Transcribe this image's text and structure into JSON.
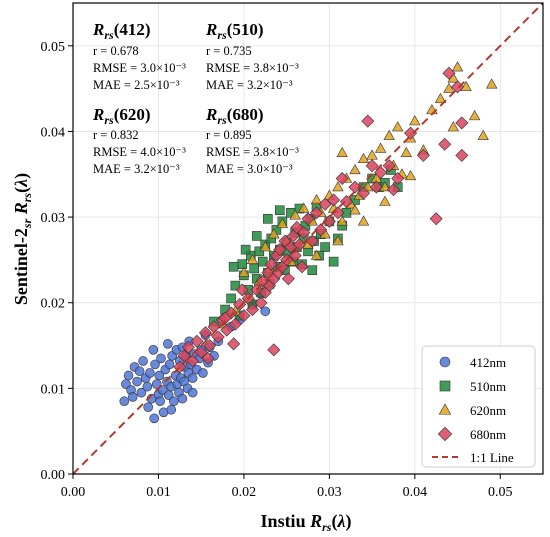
{
  "chart_data": {
    "type": "scatter",
    "title": "",
    "xlabel": "Instiu R_rs(λ)",
    "ylabel": "Sentinel-2_sr R_rs(λ)",
    "xlim": [
      0.0,
      0.055
    ],
    "ylim": [
      0.0,
      0.055
    ],
    "xticks": [
      "0.00",
      "0.01",
      "0.02",
      "0.03",
      "0.04",
      "0.05"
    ],
    "yticks": [
      "0.00",
      "0.01",
      "0.02",
      "0.03",
      "0.04",
      "0.05"
    ],
    "grid": true,
    "legend_position": "bottom-right",
    "reference_line": {
      "name": "1:1 Line",
      "color": "#b03a2e",
      "style": "dashed"
    },
    "stats": [
      {
        "title": "R_rs(412)",
        "r": "r = 0.678",
        "rmse": "RMSE = 3.0×10⁻³",
        "mae": "MAE = 2.5×10⁻³"
      },
      {
        "title": "R_rs(510)",
        "r": "r = 0.735",
        "rmse": "RMSE = 3.8×10⁻³",
        "mae": "MAE = 3.2×10⁻³"
      },
      {
        "title": "R_rs(620)",
        "r": "r = 0.832",
        "rmse": "RMSE = 4.0×10⁻³",
        "mae": "MAE = 3.2×10⁻³"
      },
      {
        "title": "R_rs(680)",
        "r": "r = 0.895",
        "rmse": "RMSE = 3.8×10⁻³",
        "mae": "MAE = 3.0×10⁻³"
      }
    ],
    "series": [
      {
        "name": "412nm",
        "marker": "circle",
        "color": "#4f74d6",
        "points": [
          [
            0.006,
            0.0085
          ],
          [
            0.0062,
            0.0105
          ],
          [
            0.0065,
            0.0115
          ],
          [
            0.0068,
            0.0098
          ],
          [
            0.007,
            0.009
          ],
          [
            0.0072,
            0.0125
          ],
          [
            0.0075,
            0.0108
          ],
          [
            0.0078,
            0.012
          ],
          [
            0.008,
            0.0095
          ],
          [
            0.0082,
            0.0132
          ],
          [
            0.0085,
            0.0112
          ],
          [
            0.0087,
            0.0102
          ],
          [
            0.009,
            0.0118
          ],
          [
            0.0092,
            0.0088
          ],
          [
            0.0094,
            0.0145
          ],
          [
            0.0096,
            0.0128
          ],
          [
            0.0098,
            0.0105
          ],
          [
            0.01,
            0.0093
          ],
          [
            0.0101,
            0.0115
          ],
          [
            0.0102,
            0.0085
          ],
          [
            0.0103,
            0.0135
          ],
          [
            0.0105,
            0.0098
          ],
          [
            0.0106,
            0.0072
          ],
          [
            0.0108,
            0.0122
          ],
          [
            0.011,
            0.0108
          ],
          [
            0.0111,
            0.0152
          ],
          [
            0.0112,
            0.0092
          ],
          [
            0.0113,
            0.0128
          ],
          [
            0.0115,
            0.0102
          ],
          [
            0.0116,
            0.0138
          ],
          [
            0.0118,
            0.0085
          ],
          [
            0.012,
            0.0115
          ],
          [
            0.0121,
            0.0145
          ],
          [
            0.0122,
            0.0105
          ],
          [
            0.0124,
            0.0095
          ],
          [
            0.0125,
            0.0132
          ],
          [
            0.0126,
            0.0112
          ],
          [
            0.0128,
            0.0148
          ],
          [
            0.013,
            0.0108
          ],
          [
            0.0131,
            0.0125
          ],
          [
            0.0132,
            0.0138
          ],
          [
            0.0134,
            0.01
          ],
          [
            0.0135,
            0.0118
          ],
          [
            0.0136,
            0.0155
          ],
          [
            0.0138,
            0.0128
          ],
          [
            0.014,
            0.0112
          ],
          [
            0.0142,
            0.014
          ],
          [
            0.0145,
            0.0122
          ],
          [
            0.0148,
            0.0135
          ],
          [
            0.015,
            0.0145
          ],
          [
            0.0152,
            0.0118
          ],
          [
            0.0155,
            0.0162
          ],
          [
            0.0158,
            0.013
          ],
          [
            0.016,
            0.0148
          ],
          [
            0.0165,
            0.0138
          ],
          [
            0.017,
            0.0155
          ],
          [
            0.0185,
            0.0172
          ],
          [
            0.0195,
            0.018
          ],
          [
            0.021,
            0.0198
          ],
          [
            0.022,
            0.021
          ],
          [
            0.0225,
            0.019
          ],
          [
            0.0088,
            0.0078
          ],
          [
            0.0095,
            0.0065
          ],
          [
            0.0115,
            0.0075
          ],
          [
            0.0128,
            0.0088
          ],
          [
            0.014,
            0.0095
          ]
        ]
      },
      {
        "name": "510nm",
        "marker": "square",
        "color": "#1f8a3c",
        "points": [
          [
            0.0165,
            0.0178
          ],
          [
            0.0178,
            0.0192
          ],
          [
            0.0185,
            0.0205
          ],
          [
            0.019,
            0.022
          ],
          [
            0.0195,
            0.0185
          ],
          [
            0.0198,
            0.0245
          ],
          [
            0.02,
            0.0232
          ],
          [
            0.0205,
            0.0215
          ],
          [
            0.0208,
            0.0255
          ],
          [
            0.021,
            0.0198
          ],
          [
            0.0212,
            0.024
          ],
          [
            0.0215,
            0.0228
          ],
          [
            0.0218,
            0.026
          ],
          [
            0.022,
            0.0212
          ],
          [
            0.0222,
            0.0248
          ],
          [
            0.0225,
            0.0268
          ],
          [
            0.0228,
            0.0235
          ],
          [
            0.023,
            0.0222
          ],
          [
            0.0232,
            0.0275
          ],
          [
            0.0235,
            0.0255
          ],
          [
            0.0238,
            0.0285
          ],
          [
            0.024,
            0.0242
          ],
          [
            0.0242,
            0.0262
          ],
          [
            0.0245,
            0.0295
          ],
          [
            0.0248,
            0.0238
          ],
          [
            0.025,
            0.027
          ],
          [
            0.0252,
            0.0258
          ],
          [
            0.0255,
            0.0305
          ],
          [
            0.0258,
            0.0248
          ],
          [
            0.026,
            0.0282
          ],
          [
            0.0262,
            0.0265
          ],
          [
            0.0265,
            0.031
          ],
          [
            0.0268,
            0.0245
          ],
          [
            0.027,
            0.0275
          ],
          [
            0.0272,
            0.029
          ],
          [
            0.0275,
            0.026
          ],
          [
            0.0278,
            0.0298
          ],
          [
            0.028,
            0.0238
          ],
          [
            0.0282,
            0.0272
          ],
          [
            0.0285,
            0.0312
          ],
          [
            0.0288,
            0.0255
          ],
          [
            0.029,
            0.028
          ],
          [
            0.0295,
            0.0265
          ],
          [
            0.03,
            0.0295
          ],
          [
            0.0305,
            0.0248
          ],
          [
            0.031,
            0.0275
          ],
          [
            0.0315,
            0.029
          ],
          [
            0.032,
            0.0305
          ],
          [
            0.033,
            0.032
          ],
          [
            0.034,
            0.0335
          ],
          [
            0.035,
            0.0345
          ],
          [
            0.0358,
            0.0335
          ],
          [
            0.0365,
            0.034
          ],
          [
            0.0372,
            0.0355
          ],
          [
            0.038,
            0.0335
          ],
          [
            0.0188,
            0.0242
          ],
          [
            0.0202,
            0.0262
          ],
          [
            0.0215,
            0.0278
          ],
          [
            0.0228,
            0.0298
          ],
          [
            0.0242,
            0.0308
          ]
        ]
      },
      {
        "name": "620nm",
        "marker": "triangle",
        "color": "#e0a21c",
        "points": [
          [
            0.0175,
            0.0175
          ],
          [
            0.019,
            0.019
          ],
          [
            0.02,
            0.0235
          ],
          [
            0.0205,
            0.0205
          ],
          [
            0.021,
            0.025
          ],
          [
            0.0218,
            0.0225
          ],
          [
            0.0225,
            0.0265
          ],
          [
            0.023,
            0.024
          ],
          [
            0.0235,
            0.028
          ],
          [
            0.024,
            0.026
          ],
          [
            0.0245,
            0.0292
          ],
          [
            0.025,
            0.0272
          ],
          [
            0.0255,
            0.0248
          ],
          [
            0.026,
            0.0302
          ],
          [
            0.0265,
            0.0285
          ],
          [
            0.027,
            0.031
          ],
          [
            0.0275,
            0.0268
          ],
          [
            0.028,
            0.0295
          ],
          [
            0.0285,
            0.032
          ],
          [
            0.029,
            0.0305
          ],
          [
            0.0295,
            0.028
          ],
          [
            0.03,
            0.0325
          ],
          [
            0.0305,
            0.031
          ],
          [
            0.031,
            0.0335
          ],
          [
            0.0315,
            0.0295
          ],
          [
            0.032,
            0.0345
          ],
          [
            0.0325,
            0.0315
          ],
          [
            0.033,
            0.0355
          ],
          [
            0.0335,
            0.0325
          ],
          [
            0.034,
            0.0368
          ],
          [
            0.0345,
            0.0335
          ],
          [
            0.035,
            0.0372
          ],
          [
            0.0355,
            0.0345
          ],
          [
            0.036,
            0.038
          ],
          [
            0.0365,
            0.0335
          ],
          [
            0.037,
            0.0395
          ],
          [
            0.0375,
            0.036
          ],
          [
            0.038,
            0.0405
          ],
          [
            0.0385,
            0.035
          ],
          [
            0.039,
            0.0375
          ],
          [
            0.0395,
            0.0392
          ],
          [
            0.04,
            0.0412
          ],
          [
            0.041,
            0.0378
          ],
          [
            0.042,
            0.0425
          ],
          [
            0.043,
            0.0438
          ],
          [
            0.044,
            0.045
          ],
          [
            0.0445,
            0.0462
          ],
          [
            0.045,
            0.0475
          ],
          [
            0.046,
            0.0452
          ],
          [
            0.047,
            0.0418
          ],
          [
            0.048,
            0.0395
          ],
          [
            0.049,
            0.0455
          ],
          [
            0.0365,
            0.0318
          ],
          [
            0.034,
            0.0295
          ],
          [
            0.031,
            0.0272
          ],
          [
            0.0285,
            0.0255
          ],
          [
            0.033,
            0.0308
          ],
          [
            0.0315,
            0.0375
          ],
          [
            0.0395,
            0.0348
          ],
          [
            0.0445,
            0.0405
          ]
        ]
      },
      {
        "name": "680nm",
        "marker": "diamond",
        "color": "#d9435f",
        "points": [
          [
            0.0125,
            0.0125
          ],
          [
            0.013,
            0.0138
          ],
          [
            0.0135,
            0.0148
          ],
          [
            0.014,
            0.0132
          ],
          [
            0.0145,
            0.0155
          ],
          [
            0.015,
            0.0142
          ],
          [
            0.0155,
            0.0165
          ],
          [
            0.016,
            0.015
          ],
          [
            0.0165,
            0.0172
          ],
          [
            0.017,
            0.016
          ],
          [
            0.0175,
            0.018
          ],
          [
            0.018,
            0.0168
          ],
          [
            0.0185,
            0.0188
          ],
          [
            0.019,
            0.0175
          ],
          [
            0.0195,
            0.0198
          ],
          [
            0.02,
            0.0185
          ],
          [
            0.0205,
            0.0205
          ],
          [
            0.021,
            0.0192
          ],
          [
            0.0215,
            0.0215
          ],
          [
            0.022,
            0.02
          ],
          [
            0.0222,
            0.0225
          ],
          [
            0.0225,
            0.0212
          ],
          [
            0.0228,
            0.0235
          ],
          [
            0.023,
            0.022
          ],
          [
            0.0232,
            0.0245
          ],
          [
            0.0235,
            0.0228
          ],
          [
            0.0238,
            0.0255
          ],
          [
            0.024,
            0.0235
          ],
          [
            0.0242,
            0.0262
          ],
          [
            0.0245,
            0.0242
          ],
          [
            0.0248,
            0.0272
          ],
          [
            0.025,
            0.025
          ],
          [
            0.0252,
            0.0228
          ],
          [
            0.0255,
            0.0265
          ],
          [
            0.0258,
            0.0278
          ],
          [
            0.026,
            0.0255
          ],
          [
            0.0262,
            0.0288
          ],
          [
            0.0265,
            0.0268
          ],
          [
            0.0268,
            0.0242
          ],
          [
            0.027,
            0.0282
          ],
          [
            0.0275,
            0.0298
          ],
          [
            0.028,
            0.0272
          ],
          [
            0.0285,
            0.0305
          ],
          [
            0.029,
            0.0285
          ],
          [
            0.0295,
            0.0315
          ],
          [
            0.03,
            0.0295
          ],
          [
            0.0305,
            0.032
          ],
          [
            0.031,
            0.0305
          ],
          [
            0.0315,
            0.0345
          ],
          [
            0.032,
            0.0318
          ],
          [
            0.033,
            0.0335
          ],
          [
            0.034,
            0.0328
          ],
          [
            0.035,
            0.036
          ],
          [
            0.0355,
            0.0335
          ],
          [
            0.036,
            0.0352
          ],
          [
            0.037,
            0.036
          ],
          [
            0.0375,
            0.0332
          ],
          [
            0.038,
            0.0345
          ],
          [
            0.0395,
            0.0398
          ],
          [
            0.041,
            0.0372
          ],
          [
            0.0435,
            0.0385
          ],
          [
            0.044,
            0.0468
          ],
          [
            0.045,
            0.0452
          ],
          [
            0.0455,
            0.041
          ],
          [
            0.0455,
            0.0372
          ],
          [
            0.0425,
            0.0298
          ],
          [
            0.0345,
            0.0412
          ],
          [
            0.0235,
            0.0145
          ],
          [
            0.0188,
            0.0152
          ],
          [
            0.0158,
            0.0135
          ],
          [
            0.0178,
            0.0182
          ],
          [
            0.0198,
            0.0215
          ]
        ]
      }
    ]
  }
}
